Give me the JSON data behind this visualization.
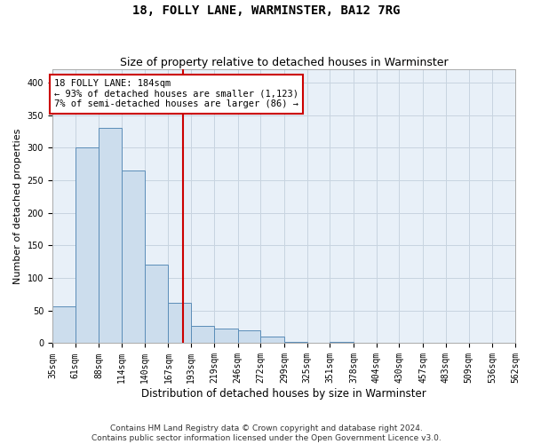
{
  "title": "18, FOLLY LANE, WARMINSTER, BA12 7RG",
  "subtitle": "Size of property relative to detached houses in Warminster",
  "xlabel": "Distribution of detached houses by size in Warminster",
  "ylabel": "Number of detached properties",
  "footer_line1": "Contains HM Land Registry data © Crown copyright and database right 2024.",
  "footer_line2": "Contains public sector information licensed under the Open Government Licence v3.0.",
  "annotation_title": "18 FOLLY LANE: 184sqm",
  "annotation_line1": "← 93% of detached houses are smaller (1,123)",
  "annotation_line2": "7% of semi-detached houses are larger (86) →",
  "property_size": 184,
  "bin_edges": [
    35,
    61,
    88,
    114,
    140,
    167,
    193,
    219,
    246,
    272,
    299,
    325,
    351,
    378,
    404,
    430,
    457,
    483,
    509,
    536,
    562
  ],
  "bin_labels": [
    "35sqm",
    "61sqm",
    "88sqm",
    "114sqm",
    "140sqm",
    "167sqm",
    "193sqm",
    "219sqm",
    "246sqm",
    "272sqm",
    "299sqm",
    "325sqm",
    "351sqm",
    "378sqm",
    "404sqm",
    "430sqm",
    "457sqm",
    "483sqm",
    "509sqm",
    "536sqm",
    "562sqm"
  ],
  "counts": [
    57,
    300,
    330,
    265,
    120,
    62,
    27,
    22,
    20,
    10,
    2,
    0,
    2,
    0,
    1,
    0,
    0,
    0,
    0,
    1
  ],
  "bar_facecolor": "#ccdded",
  "bar_edgecolor": "#5b8db8",
  "vline_color": "#cc0000",
  "vline_x": 184,
  "annotation_box_edgecolor": "#cc0000",
  "annotation_box_facecolor": "#ffffff",
  "grid_color": "#c8d4e0",
  "background_color": "#e8f0f8",
  "ylim": [
    0,
    420
  ],
  "yticks": [
    0,
    50,
    100,
    150,
    200,
    250,
    300,
    350,
    400
  ],
  "title_fontsize": 10,
  "subtitle_fontsize": 9,
  "ylabel_fontsize": 8,
  "xlabel_fontsize": 8.5,
  "tick_fontsize": 7,
  "annot_fontsize": 7.5,
  "footer_fontsize": 6.5
}
